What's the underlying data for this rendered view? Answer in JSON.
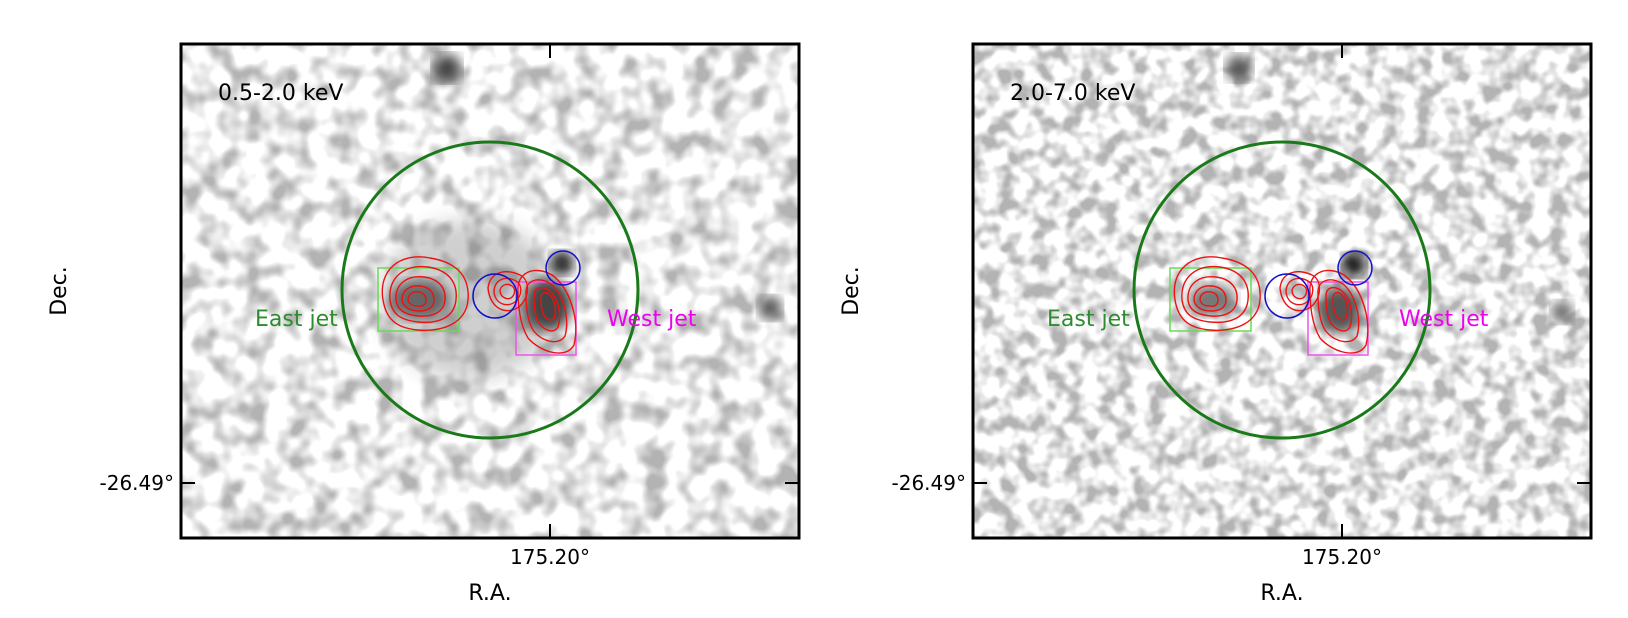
{
  "panels": [
    {
      "band_label": "0.5-2.0 keV",
      "x_axis_label": "R.A.",
      "y_axis_label": "Dec.",
      "x_tick_label": "175.20°",
      "y_tick_label": "-26.49°",
      "east_jet_label": "East jet",
      "west_jet_label": "West jet"
    },
    {
      "band_label": "2.0-7.0 keV",
      "x_axis_label": "R.A.",
      "y_axis_label": "Dec.",
      "x_tick_label": "175.20°",
      "y_tick_label": "-26.49°",
      "east_jet_label": "East jet",
      "west_jet_label": "West jet"
    }
  ],
  "colors": {
    "frame": "#000000",
    "extraction_circle": "#1a7a1a",
    "east_jet": "#2e8b2e",
    "east_box": "#66dd55",
    "west_jet": "#ee00ee",
    "west_box": "#ee55ee",
    "radio_contours": "#ee1111",
    "point_source": "#1111cc"
  }
}
